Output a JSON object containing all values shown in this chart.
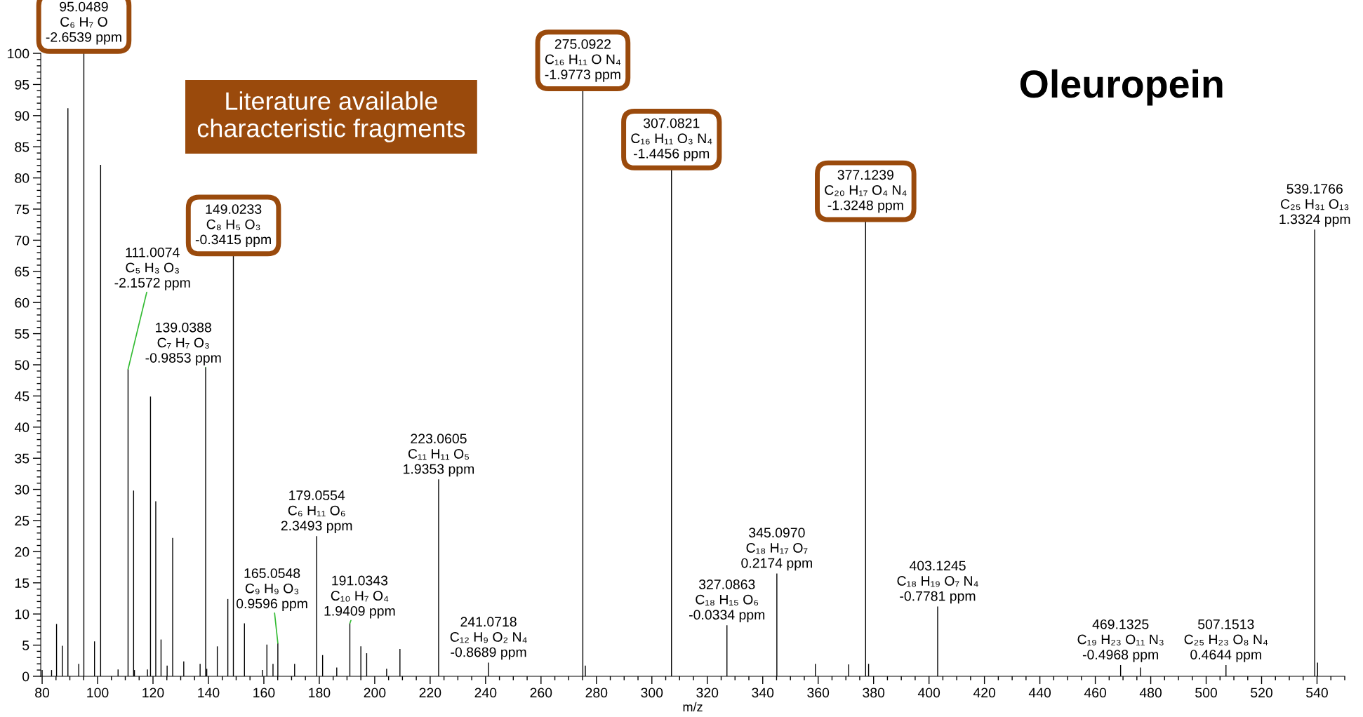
{
  "chart_data": {
    "type": "bar",
    "title": "Oleuropein",
    "xlabel": "m/z",
    "color": "#000000",
    "x": [
      80.0,
      83.4,
      85.2,
      87.3,
      89.3,
      93.2,
      95.05,
      98.9,
      101.1,
      107.4,
      111.0,
      113.0,
      113.3,
      118.0,
      119.1,
      121.0,
      122.9,
      125.1,
      127.1,
      131.1,
      137.0,
      139.0,
      139.4,
      143.2,
      147.0,
      149.0,
      153.0,
      159.5,
      161.1,
      163.3,
      165.05,
      171.1,
      179.06,
      181.2,
      186.3,
      191.03,
      195.0,
      197.1,
      204.3,
      209.1,
      223.06,
      241.07,
      275.09,
      276.0,
      307.08,
      327.09,
      345.1,
      359.0,
      371.0,
      377.12,
      378.2,
      403.12,
      469.13,
      476.3,
      507.15,
      539.18,
      540.2
    ],
    "values": [
      1.0,
      1.0,
      8.4,
      4.9,
      91.2,
      2.0,
      100,
      5.6,
      82.1,
      1.1,
      49.3,
      29.8,
      1.0,
      1.1,
      44.9,
      28.1,
      5.9,
      1.7,
      22.2,
      2.4,
      2.0,
      49.6,
      1.2,
      4.8,
      12.4,
      67.5,
      8.5,
      1.0,
      5.1,
      2.0,
      5.3,
      2.0,
      22.5,
      3.4,
      1.4,
      8.5,
      4.8,
      3.7,
      1.2,
      4.4,
      31.6,
      2.2,
      94.0,
      1.7,
      81.3,
      8.2,
      16.5,
      2.0,
      1.9,
      73.0,
      2.0,
      11.2,
      1.8,
      1.4,
      1.8,
      71.7,
      2.2
    ],
    "xlim": [
      79.5,
      550
    ],
    "xticks": [
      80,
      {
        "value": 85,
        "label": null
      },
      {
        "value": 90,
        "label": null
      },
      {
        "value": 95,
        "label": null
      },
      100,
      {
        "value": 105,
        "label": null
      },
      {
        "value": 110,
        "label": null
      },
      {
        "value": 115,
        "label": null
      },
      120,
      {
        "value": 125,
        "label": null
      },
      {
        "value": 130,
        "label": null
      },
      {
        "value": 135,
        "label": null
      },
      140,
      {
        "value": 145,
        "label": null
      },
      {
        "value": 150,
        "label": null
      },
      {
        "value": 155,
        "label": null
      },
      160,
      {
        "value": 165,
        "label": null
      },
      {
        "value": 170,
        "label": null
      },
      {
        "value": 175,
        "label": null
      },
      180,
      {
        "value": 185,
        "label": null
      },
      {
        "value": 190,
        "label": null
      },
      {
        "value": 195,
        "label": null
      },
      200,
      {
        "value": 205,
        "label": null
      },
      {
        "value": 210,
        "label": null
      },
      {
        "value": 215,
        "label": null
      },
      220,
      {
        "value": 225,
        "label": null
      },
      {
        "value": 230,
        "label": null
      },
      {
        "value": 235,
        "label": null
      },
      240,
      {
        "value": 245,
        "label": null
      },
      {
        "value": 250,
        "label": null
      },
      {
        "value": 255,
        "label": null
      },
      260,
      {
        "value": 265,
        "label": null
      },
      {
        "value": 270,
        "label": null
      },
      {
        "value": 275,
        "label": null
      },
      280,
      {
        "value": 285,
        "label": null
      },
      {
        "value": 290,
        "label": null
      },
      {
        "value": 295,
        "label": null
      },
      300,
      {
        "value": 305,
        "label": null
      },
      {
        "value": 310,
        "label": null
      },
      {
        "value": 315,
        "label": null
      },
      320,
      {
        "value": 325,
        "label": null
      },
      {
        "value": 330,
        "label": null
      },
      {
        "value": 335,
        "label": null
      },
      340,
      {
        "value": 345,
        "label": null
      },
      {
        "value": 350,
        "label": null
      },
      {
        "value": 355,
        "label": null
      },
      360,
      {
        "value": 365,
        "label": null
      },
      {
        "value": 370,
        "label": null
      },
      {
        "value": 375,
        "label": null
      },
      380,
      {
        "value": 385,
        "label": null
      },
      {
        "value": 390,
        "label": null
      },
      {
        "value": 395,
        "label": null
      },
      400,
      {
        "value": 405,
        "label": null
      },
      {
        "value": 410,
        "label": null
      },
      {
        "value": 415,
        "label": null
      },
      420,
      {
        "value": 425,
        "label": null
      },
      {
        "value": 430,
        "label": null
      },
      {
        "value": 435,
        "label": null
      },
      440,
      {
        "value": 445,
        "label": null
      },
      {
        "value": 450,
        "label": null
      },
      {
        "value": 455,
        "label": null
      },
      460,
      {
        "value": 465,
        "label": null
      },
      {
        "value": 470,
        "label": null
      },
      {
        "value": 475,
        "label": null
      },
      480,
      {
        "value": 485,
        "label": null
      },
      {
        "value": 490,
        "label": null
      },
      {
        "value": 495,
        "label": null
      },
      500,
      {
        "value": 505,
        "label": null
      },
      {
        "value": 510,
        "label": null
      },
      {
        "value": 515,
        "label": null
      },
      520,
      {
        "value": 525,
        "label": null
      },
      {
        "value": 530,
        "label": null
      },
      {
        "value": 535,
        "label": null
      },
      540,
      {
        "value": 545,
        "label": null
      },
      {
        "value": 550,
        "label": null
      }
    ],
    "ylim": [
      0,
      100
    ],
    "yticks": [
      0,
      {
        "value": 1,
        "label": null
      },
      {
        "value": 2,
        "label": null
      },
      {
        "value": 3,
        "label": null
      },
      {
        "value": 4,
        "label": null
      },
      5,
      {
        "value": 6,
        "label": null
      },
      {
        "value": 7,
        "label": null
      },
      {
        "value": 8,
        "label": null
      },
      {
        "value": 9,
        "label": null
      },
      10,
      {
        "value": 11,
        "label": null
      },
      {
        "value": 12,
        "label": null
      },
      {
        "value": 13,
        "label": null
      },
      {
        "value": 14,
        "label": null
      },
      15,
      {
        "value": 16,
        "label": null
      },
      {
        "value": 17,
        "label": null
      },
      {
        "value": 18,
        "label": null
      },
      {
        "value": 19,
        "label": null
      },
      20,
      {
        "value": 21,
        "label": null
      },
      {
        "value": 22,
        "label": null
      },
      {
        "value": 23,
        "label": null
      },
      {
        "value": 24,
        "label": null
      },
      25,
      {
        "value": 26,
        "label": null
      },
      {
        "value": 27,
        "label": null
      },
      {
        "value": 28,
        "label": null
      },
      {
        "value": 29,
        "label": null
      },
      30,
      {
        "value": 31,
        "label": null
      },
      {
        "value": 32,
        "label": null
      },
      {
        "value": 33,
        "label": null
      },
      {
        "value": 34,
        "label": null
      },
      35,
      {
        "value": 36,
        "label": null
      },
      {
        "value": 37,
        "label": null
      },
      {
        "value": 38,
        "label": null
      },
      {
        "value": 39,
        "label": null
      },
      40,
      {
        "value": 41,
        "label": null
      },
      {
        "value": 42,
        "label": null
      },
      {
        "value": 43,
        "label": null
      },
      {
        "value": 44,
        "label": null
      },
      45,
      {
        "value": 46,
        "label": null
      },
      {
        "value": 47,
        "label": null
      },
      {
        "value": 48,
        "label": null
      },
      {
        "value": 49,
        "label": null
      },
      50,
      {
        "value": 51,
        "label": null
      },
      {
        "value": 52,
        "label": null
      },
      {
        "value": 53,
        "label": null
      },
      {
        "value": 54,
        "label": null
      },
      55,
      {
        "value": 56,
        "label": null
      },
      {
        "value": 57,
        "label": null
      },
      {
        "value": 58,
        "label": null
      },
      {
        "value": 59,
        "label": null
      },
      60,
      {
        "value": 61,
        "label": null
      },
      {
        "value": 62,
        "label": null
      },
      {
        "value": 63,
        "label": null
      },
      {
        "value": 64,
        "label": null
      },
      65,
      {
        "value": 66,
        "label": null
      },
      {
        "value": 67,
        "label": null
      },
      {
        "value": 68,
        "label": null
      },
      {
        "value": 69,
        "label": null
      },
      70,
      {
        "value": 71,
        "label": null
      },
      {
        "value": 72,
        "label": null
      },
      {
        "value": 73,
        "label": null
      },
      {
        "value": 74,
        "label": null
      },
      75,
      {
        "value": 76,
        "label": null
      },
      {
        "value": 77,
        "label": null
      },
      {
        "value": 78,
        "label": null
      },
      {
        "value": 79,
        "label": null
      },
      80,
      {
        "value": 81,
        "label": null
      },
      {
        "value": 82,
        "label": null
      },
      {
        "value": 83,
        "label": null
      },
      {
        "value": 84,
        "label": null
      },
      85,
      {
        "value": 86,
        "label": null
      },
      {
        "value": 87,
        "label": null
      },
      {
        "value": 88,
        "label": null
      },
      {
        "value": 89,
        "label": null
      },
      90,
      {
        "value": 91,
        "label": null
      },
      {
        "value": 92,
        "label": null
      },
      {
        "value": 93,
        "label": null
      },
      {
        "value": 94,
        "label": null
      },
      95,
      {
        "value": 96,
        "label": null
      },
      {
        "value": 97,
        "label": null
      },
      {
        "value": 98,
        "label": null
      },
      {
        "value": 99,
        "label": null
      },
      100
    ],
    "annotations": [
      "Literature available\ncharacteristic fragments",
      {
        "text": "95.0489\nC₆ H₇ O\n-2.6539 ppm",
        "x": 95.0489,
        "y": 100
      },
      {
        "text": "111.0074\nC₅ H₃ O₃\n-2.1572 ppm",
        "x": 111.0074,
        "y": 49.3
      },
      {
        "text": "139.0388\nC₇ H₇ O₃\n-0.9853 ppm",
        "x": 139.0388,
        "y": 49.6
      },
      {
        "text": "149.0233\nC₈ H₅ O₃\n-0.3415 ppm",
        "x": 149.0233,
        "y": 67.5
      },
      {
        "text": "165.0548\nC₉ H₉ O₃\n0.9596 ppm",
        "x": 165.0548,
        "y": 5.3
      },
      {
        "text": "179.0554\nC₆ H₁₁ O₆\n2.3493 ppm",
        "x": 179.0554,
        "y": 22.5
      },
      {
        "text": "191.0343\nC₁₀ H₇ O₄\n1.9409 ppm",
        "x": 191.0343,
        "y": 8.5
      },
      {
        "text": "223.0605\nC₁₁ H₁₁ O₅\n1.9353 ppm",
        "x": 223.0605,
        "y": 31.6
      },
      {
        "text": "241.0718\nC₁₂ H₉ O₂ N₄\n-0.8689 ppm",
        "x": 241.0718,
        "y": 2.2
      },
      {
        "text": "275.0922\nC₁₆ H₁₁ O N₄\n-1.9773 ppm",
        "x": 275.0922,
        "y": 94.0
      },
      {
        "text": "307.0821\nC₁₆ H₁₁ O₃ N₄\n-1.4456 ppm",
        "x": 307.0821,
        "y": 81.3
      },
      {
        "text": "327.0863\nC₁₈ H₁₅ O₆\n-0.0334 ppm",
        "x": 327.0863,
        "y": 8.2
      },
      {
        "text": "345.0970\nC₁₈ H₁₇ O₇\n0.2174 ppm",
        "x": 345.097,
        "y": 16.5
      },
      {
        "text": "377.1239\nC₂₀ H₁₇ O₄ N₄\n-1.3248 ppm",
        "x": 377.1239,
        "y": 73.0
      },
      {
        "text": "403.1245\nC₁₈ H₁₉ O₇ N₄\n-0.7781 ppm",
        "x": 403.1245,
        "y": 11.2
      },
      {
        "text": "469.1325\nC₁₉ H₂₃ O₁₁ N₃\n-0.4968 ppm",
        "x": 469.1325,
        "y": 1.8
      },
      {
        "text": "507.1513\nC₂₅ H₂₃ O₈ N₄\n0.4644 ppm",
        "x": 507.1513,
        "y": 1.8
      },
      {
        "text": "539.1766\nC₂₅ H₃₁ O₁₃\n1.3324 ppm",
        "x": 539.1766,
        "y": 71.7
      }
    ]
  }
}
